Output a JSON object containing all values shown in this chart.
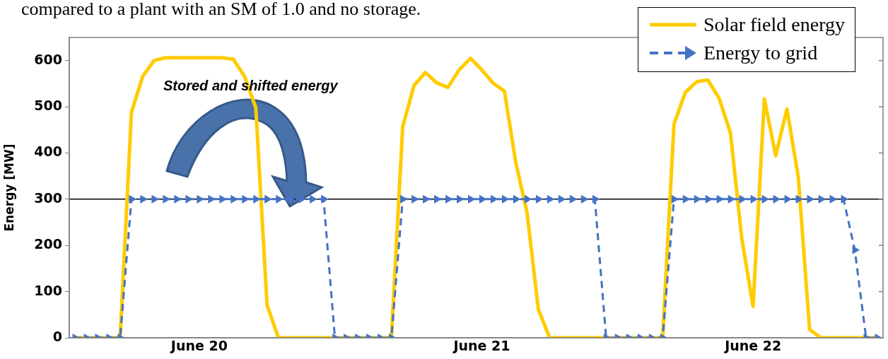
{
  "chart_data": {
    "type": "line",
    "ylabel": "Energy [MW]",
    "categories": [
      null,
      null,
      null,
      null,
      null,
      null,
      null,
      null,
      null,
      null,
      null,
      "June 20",
      null,
      null,
      null,
      null,
      null,
      null,
      null,
      null,
      null,
      null,
      null,
      null,
      null,
      null,
      null,
      null,
      null,
      null,
      null,
      null,
      null,
      null,
      null,
      null,
      "June 21",
      null,
      null,
      null,
      null,
      null,
      null,
      null,
      null,
      null,
      null,
      null,
      null,
      null,
      null,
      null,
      null,
      null,
      null,
      null,
      null,
      null,
      null,
      null,
      "June 22",
      null,
      null,
      null,
      null,
      null,
      null,
      null,
      null,
      null,
      null,
      null
    ],
    "ylim": [
      0,
      650
    ],
    "yticks": [
      0,
      100,
      200,
      300,
      400,
      500,
      600
    ],
    "grid": false,
    "legend": "top right",
    "ref_lines": [
      {
        "axis": "y",
        "value": 300,
        "color": "#000000"
      }
    ],
    "annotations": [
      "compared to a plant with an SM of 1.0 and no storage.",
      "Stored and shifted energy"
    ],
    "series": [
      {
        "name": "Solar field energy",
        "color": "#ffcc00",
        "line_style": "solid",
        "marker": "none",
        "values": [
          0,
          0,
          0,
          0,
          0,
          488,
          566,
          600,
          606,
          606,
          606,
          606,
          606,
          606,
          603,
          566,
          498,
          71,
          0,
          0,
          0,
          0,
          0,
          0,
          0,
          0,
          0,
          0,
          0,
          457,
          546,
          574,
          552,
          542,
          580,
          605,
          580,
          551,
          534,
          380,
          271,
          62,
          0,
          0,
          0,
          0,
          0,
          0,
          0,
          0,
          0,
          0,
          0,
          462,
          531,
          554,
          558,
          518,
          443,
          215,
          68,
          517,
          394,
          495,
          348,
          18,
          0,
          0,
          0,
          0,
          0,
          0
        ]
      },
      {
        "name": "Energy to grid",
        "color": "#4472c4",
        "line_style": "dashed",
        "marker": "triangle",
        "values": [
          0,
          0,
          0,
          0,
          0,
          300,
          300,
          300,
          300,
          300,
          300,
          300,
          300,
          300,
          300,
          300,
          300,
          300,
          300,
          300,
          300,
          300,
          300,
          0,
          0,
          0,
          0,
          0,
          0,
          300,
          300,
          300,
          300,
          300,
          300,
          300,
          300,
          300,
          300,
          300,
          300,
          300,
          300,
          300,
          300,
          300,
          300,
          0,
          0,
          0,
          0,
          0,
          0,
          300,
          300,
          300,
          300,
          300,
          300,
          300,
          300,
          300,
          300,
          300,
          300,
          300,
          300,
          300,
          300,
          190,
          0,
          0
        ]
      }
    ]
  }
}
